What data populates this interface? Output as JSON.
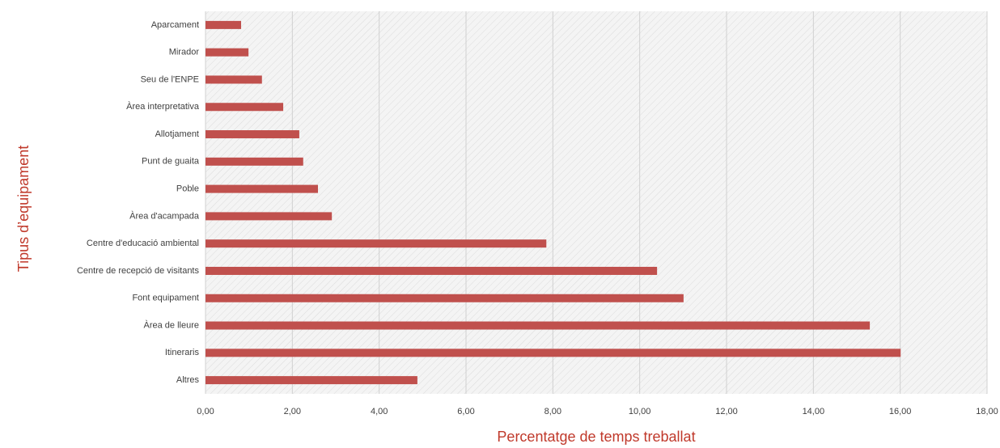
{
  "chart_data": {
    "type": "bar",
    "orientation": "horizontal",
    "x_label": "Percentatge de temps treballat",
    "y_label": "Tipus d’equipament",
    "categories": [
      "Aparcament",
      "Mirador",
      "Seu de l'ENPE",
      "Àrea interpretativa",
      "Allotjament",
      "Punt de guaita",
      "Poble",
      "Àrea d'acampada",
      "Centre d'educació ambiental",
      "Centre de recepció de visitants",
      "Font equipament",
      "Àrea de lleure",
      "Itineraris",
      "Altres"
    ],
    "values": [
      0.82,
      0.99,
      1.3,
      1.79,
      2.16,
      2.25,
      2.59,
      2.91,
      7.85,
      10.4,
      11.01,
      15.3,
      16.01,
      4.88
    ],
    "color": "#c0504d",
    "xlim": [
      0,
      18
    ],
    "xticks": [
      {
        "value": 0,
        "label": "0,00"
      },
      {
        "value": 2,
        "label": "2,00"
      },
      {
        "value": 4,
        "label": "4,00"
      },
      {
        "value": 6,
        "label": "6,00"
      },
      {
        "value": 8,
        "label": "8,00"
      },
      {
        "value": 10,
        "label": "10,00"
      },
      {
        "value": 12,
        "label": "12,00"
      },
      {
        "value": 14,
        "label": "14,00"
      },
      {
        "value": 16,
        "label": "16,00"
      },
      {
        "value": 18,
        "label": "18,00"
      }
    ],
    "grid": true
  }
}
